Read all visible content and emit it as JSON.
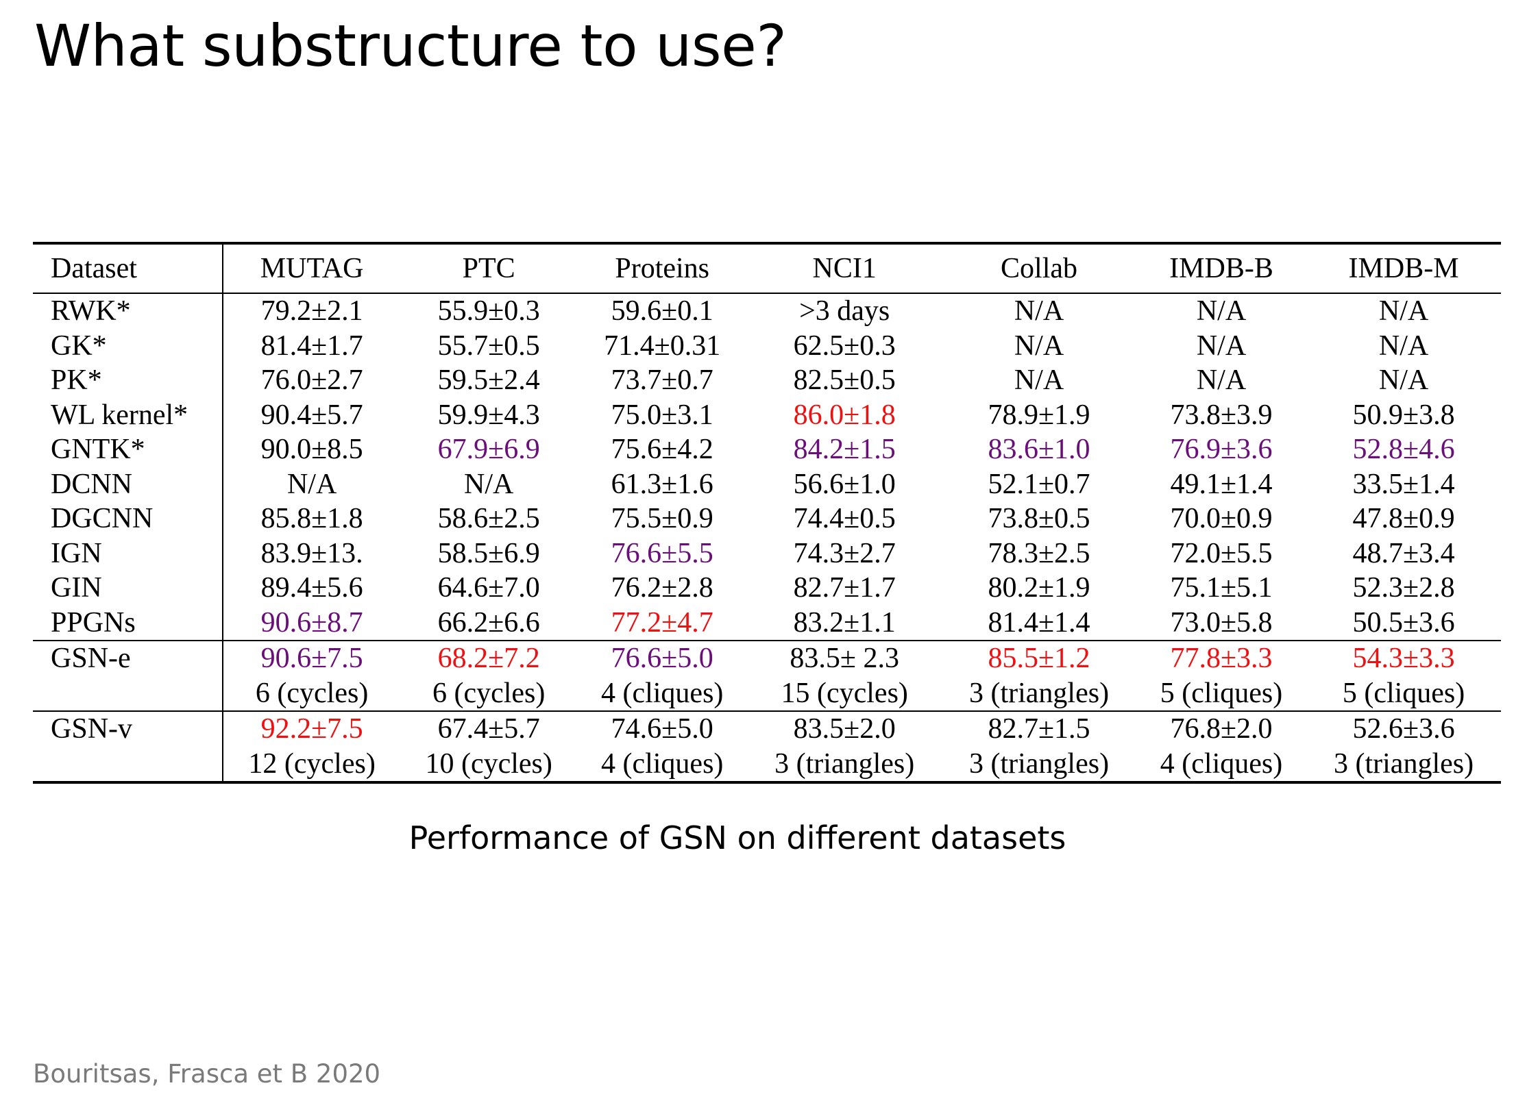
{
  "slide": {
    "title": "What substructure to use?",
    "caption": "Performance of GSN on different datasets",
    "citation": "Bouritsas, Frasca et B 2020"
  },
  "colors": {
    "best": "#ee1111",
    "second": "#6a0f7a",
    "third": "#000000 (bold)"
  },
  "table": {
    "headers": [
      "Dataset",
      "MUTAG",
      "PTC",
      "Proteins",
      "NCI1",
      "Collab",
      "IMDB-B",
      "IMDB-M"
    ],
    "rows": [
      {
        "label": "RWK*",
        "cells": [
          "79.2±2.1",
          "55.9±0.3",
          "59.6±0.1",
          ">3 days",
          "N/A",
          "N/A",
          "N/A"
        ]
      },
      {
        "label": "GK*",
        "cells": [
          "81.4±1.7",
          "55.7±0.5",
          "71.4±0.31",
          "62.5±0.3",
          "N/A",
          "N/A",
          "N/A"
        ]
      },
      {
        "label": "PK*",
        "cells": [
          "76.0±2.7",
          "59.5±2.4",
          "73.7±0.7",
          "82.5±0.5",
          "N/A",
          "N/A",
          "N/A"
        ]
      },
      {
        "label": "WL kernel*",
        "cells": [
          "90.4±5.7",
          "59.9±4.3",
          "75.0±3.1",
          "86.0±1.8",
          "78.9±1.9",
          "73.8±3.9",
          "50.9±3.8"
        ]
      },
      {
        "label": "GNTK*",
        "cells": [
          "90.0±8.5",
          "67.9±6.9",
          "75.6±4.2",
          "84.2±1.5",
          "83.6±1.0",
          "76.9±3.6",
          "52.8±4.6"
        ]
      },
      {
        "label": "DCNN",
        "cells": [
          "N/A",
          "N/A",
          "61.3±1.6",
          "56.6±1.0",
          "52.1±0.7",
          "49.1±1.4",
          "33.5±1.4"
        ]
      },
      {
        "label": "DGCNN",
        "cells": [
          "85.8±1.8",
          "58.6±2.5",
          "75.5±0.9",
          "74.4±0.5",
          "73.8±0.5",
          "70.0±0.9",
          "47.8±0.9"
        ]
      },
      {
        "label": "IGN",
        "cells": [
          "83.9±13.",
          "58.5±6.9",
          "76.6±5.5",
          "74.3±2.7",
          "78.3±2.5",
          "72.0±5.5",
          "48.7±3.4"
        ]
      },
      {
        "label": "GIN",
        "cells": [
          "89.4±5.6",
          "64.6±7.0",
          "76.2±2.8",
          "82.7±1.7",
          "80.2±1.9",
          "75.1±5.1",
          "52.3±2.8"
        ]
      },
      {
        "label": "PPGNs",
        "cells": [
          "90.6±8.7",
          "66.2±6.6",
          "77.2±4.7",
          "83.2±1.1",
          "81.4±1.4",
          "73.0±5.8",
          "50.5±3.6"
        ]
      },
      {
        "label": "GSN-e",
        "cells": [
          "90.6±7.5",
          "68.2±7.2",
          "76.6±5.0",
          "83.5± 2.3",
          "85.5±1.2",
          "77.8±3.3",
          "54.3±3.3"
        ]
      },
      {
        "label": "",
        "cells": [
          "6 (cycles)",
          "6 (cycles)",
          "4 (cliques)",
          "15 (cycles)",
          "3 (triangles)",
          "5 (cliques)",
          "5 (cliques)"
        ]
      },
      {
        "label": "GSN-v",
        "cells": [
          "92.2±7.5",
          "67.4±5.7",
          "74.6±5.0",
          "83.5±2.0",
          "82.7±1.5",
          "76.8±2.0",
          "52.6±3.6"
        ]
      },
      {
        "label": "",
        "cells": [
          "12 (cycles)",
          "10 (cycles)",
          "4 (cliques)",
          "3 (triangles)",
          "3 (triangles)",
          "4 (cliques)",
          "3 (triangles)"
        ]
      }
    ]
  }
}
